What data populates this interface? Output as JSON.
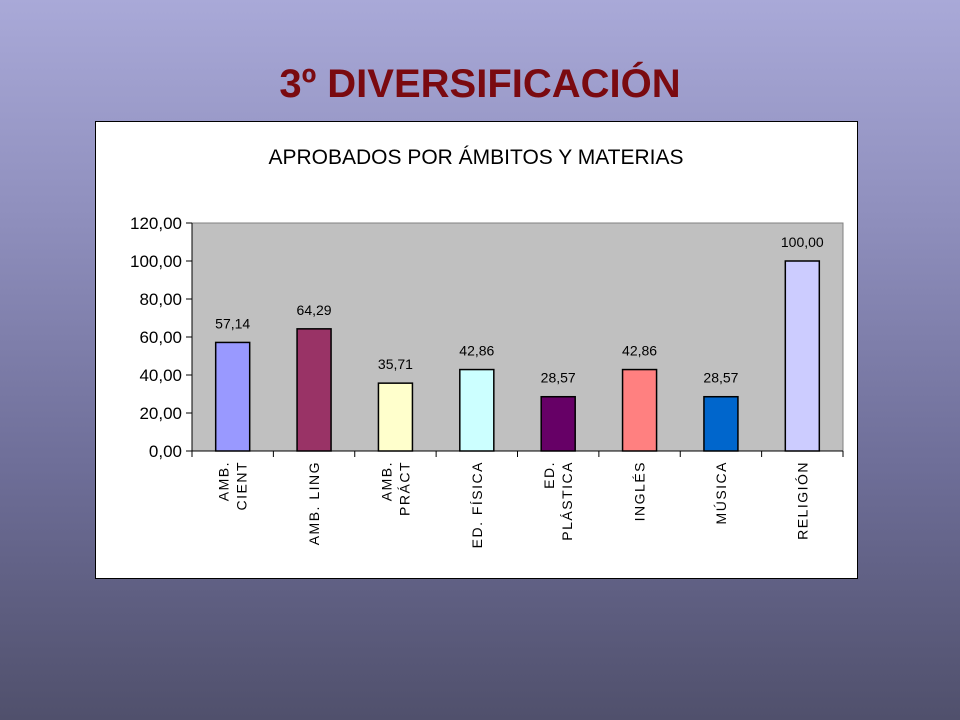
{
  "slide": {
    "title": "3º DIVERSIFICACIÓN"
  },
  "chart_data": {
    "type": "bar",
    "title": "APROBADOS POR ÁMBITOS Y  MATERIAS",
    "categories": [
      [
        "AMB.",
        "CIENT"
      ],
      [
        "AMB. LING"
      ],
      [
        "AMB.",
        "PRÁCT"
      ],
      [
        "ED. FÍSICA"
      ],
      [
        "ED.",
        "PLÁSTICA"
      ],
      [
        "INGLÉS"
      ],
      [
        "MÚSICA"
      ],
      [
        "RELIGIÓN"
      ]
    ],
    "values": [
      57.14,
      64.29,
      35.71,
      42.86,
      28.57,
      42.86,
      28.57,
      100.0
    ],
    "value_labels": [
      "57,14",
      "64,29",
      "35,71",
      "42,86",
      "28,57",
      "42,86",
      "28,57",
      "100,00"
    ],
    "bar_colors": [
      "#9999ff",
      "#993366",
      "#ffffcc",
      "#ccffff",
      "#660066",
      "#ff8080",
      "#0066cc",
      "#ccccff"
    ],
    "ylim": [
      0,
      120
    ],
    "yticks": [
      0,
      20,
      40,
      60,
      80,
      100,
      120
    ],
    "ytick_labels": [
      "0,00",
      "20,00",
      "40,00",
      "60,00",
      "80,00",
      "100,00",
      "120,00"
    ],
    "plot_background": "#c0c0c0",
    "grid": false,
    "legend": "none"
  }
}
